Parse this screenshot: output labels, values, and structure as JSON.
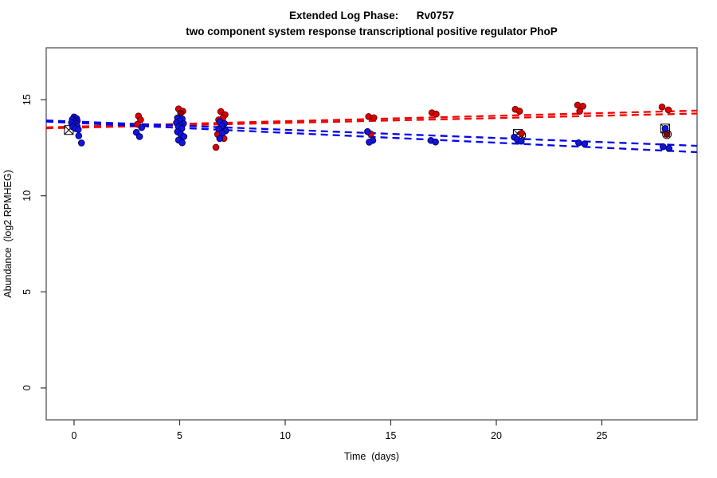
{
  "window": {
    "background": "#ffffff"
  },
  "chart_data": {
    "type": "scatter",
    "title": "Extended Log Phase:      Rv0757",
    "subtitle": "two component system response transcriptional positive regulator PhoP",
    "xlabel": "Time  (days)",
    "ylabel": "Abundance  (log2 RPMHEG)",
    "xlim": [
      -1.32,
      29.51
    ],
    "ylim": [
      -1.66,
      17.7
    ],
    "xticks": [
      0,
      5,
      10,
      15,
      20,
      25
    ],
    "yticks": [
      0,
      5,
      10,
      15
    ],
    "grid": false,
    "legend": null,
    "box_color": "#555555",
    "tick_color": "#333333",
    "series": [
      {
        "name": "red",
        "marker": "circle",
        "color": "#dc0000",
        "edge": "#700000",
        "points": [
          [
            3.05,
            14.15
          ],
          [
            3.15,
            13.95
          ],
          [
            3.0,
            13.72
          ],
          [
            4.95,
            14.52
          ],
          [
            5.15,
            14.4
          ],
          [
            6.95,
            14.38
          ],
          [
            7.15,
            14.22
          ],
          [
            7.05,
            14.05
          ],
          [
            6.85,
            13.95
          ],
          [
            6.8,
            13.2
          ],
          [
            7.1,
            12.98
          ],
          [
            6.72,
            12.52
          ],
          [
            13.95,
            14.12
          ],
          [
            14.2,
            14.06
          ],
          [
            14.05,
            13.22
          ],
          [
            16.95,
            14.32
          ],
          [
            17.15,
            14.25
          ],
          [
            20.9,
            14.5
          ],
          [
            21.1,
            14.4
          ],
          [
            21.2,
            13.25
          ],
          [
            23.85,
            14.72
          ],
          [
            24.1,
            14.66
          ],
          [
            23.95,
            14.4
          ],
          [
            27.85,
            14.62
          ],
          [
            28.15,
            14.47
          ]
        ]
      },
      {
        "name": "dark-red",
        "marker": "circle",
        "color": "#8b0000",
        "edge": "#450000",
        "points": [
          [
            5.05,
            14.3
          ],
          [
            7.0,
            13.55
          ],
          [
            28.08,
            13.2
          ]
        ]
      },
      {
        "name": "blue",
        "marker": "circle",
        "color": "#1414dc",
        "edge": "#000070",
        "points": [
          [
            0.0,
            14.1
          ],
          [
            0.12,
            14.02
          ],
          [
            -0.08,
            13.97
          ],
          [
            0.15,
            13.9
          ],
          [
            0.03,
            13.86
          ],
          [
            -0.12,
            13.8
          ],
          [
            0.1,
            13.76
          ],
          [
            0.0,
            13.68
          ],
          [
            0.14,
            13.62
          ],
          [
            -0.06,
            13.58
          ],
          [
            0.06,
            13.5
          ],
          [
            0.2,
            13.45
          ],
          [
            0.22,
            13.12
          ],
          [
            0.35,
            12.75
          ],
          [
            3.2,
            13.55
          ],
          [
            2.95,
            13.3
          ],
          [
            3.1,
            13.08
          ],
          [
            4.9,
            14.05
          ],
          [
            5.12,
            14.0
          ],
          [
            5.0,
            13.9
          ],
          [
            4.85,
            13.8
          ],
          [
            5.18,
            13.76
          ],
          [
            5.02,
            13.68
          ],
          [
            4.95,
            13.58
          ],
          [
            5.1,
            13.5
          ],
          [
            4.9,
            13.33
          ],
          [
            5.05,
            13.2
          ],
          [
            5.2,
            13.08
          ],
          [
            4.95,
            12.9
          ],
          [
            5.12,
            12.76
          ],
          [
            6.9,
            13.86
          ],
          [
            7.12,
            13.76
          ],
          [
            7.0,
            13.64
          ],
          [
            6.85,
            13.48
          ],
          [
            7.18,
            13.38
          ],
          [
            7.02,
            13.26
          ],
          [
            6.9,
            12.98
          ],
          [
            13.9,
            13.34
          ],
          [
            14.15,
            12.88
          ],
          [
            13.98,
            12.79
          ],
          [
            16.9,
            12.88
          ],
          [
            17.12,
            12.8
          ],
          [
            20.85,
            13.05
          ],
          [
            21.0,
            12.92
          ],
          [
            21.18,
            12.84
          ],
          [
            23.9,
            12.76
          ],
          [
            24.18,
            12.7
          ],
          [
            28.0,
            13.5
          ],
          [
            27.9,
            12.55
          ],
          [
            28.18,
            12.46
          ]
        ]
      }
    ],
    "trend_lines": [
      {
        "name": "fit-red-a",
        "color": "#f00000",
        "style": "dashed",
        "x": [
          -1.32,
          29.51
        ],
        "y": [
          13.56,
          14.43
        ]
      },
      {
        "name": "fit-red-b",
        "color": "#f00000",
        "style": "dashed",
        "x": [
          -1.32,
          29.51
        ],
        "y": [
          13.51,
          14.28
        ]
      },
      {
        "name": "fit-blue-a",
        "color": "#0000ee",
        "style": "dashed",
        "x": [
          -1.32,
          29.51
        ],
        "y": [
          13.92,
          12.6
        ]
      },
      {
        "name": "fit-blue-b",
        "color": "#0000ee",
        "style": "dashed",
        "x": [
          -1.32,
          29.51
        ],
        "y": [
          13.86,
          12.27
        ]
      }
    ],
    "flag_markers": [
      {
        "shape": "square-cross",
        "x": -0.25,
        "y": 13.42
      },
      {
        "shape": "square-cross",
        "x": 21.02,
        "y": 13.22
      },
      {
        "shape": "circle-cross",
        "x": 21.18,
        "y": 13.15
      },
      {
        "shape": "square-cross",
        "x": 28.0,
        "y": 13.5
      },
      {
        "shape": "circle-cross",
        "x": 28.08,
        "y": 13.2
      }
    ]
  }
}
